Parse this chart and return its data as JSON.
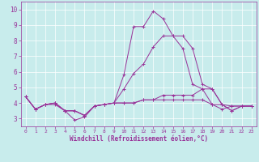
{
  "xlabel": "Windchill (Refroidissement éolien,°C)",
  "background_color": "#c8ecec",
  "line_color": "#993399",
  "xlim": [
    -0.5,
    23.5
  ],
  "ylim": [
    2.5,
    10.5
  ],
  "xticks": [
    0,
    1,
    2,
    3,
    4,
    5,
    6,
    7,
    8,
    9,
    10,
    11,
    12,
    13,
    14,
    15,
    16,
    17,
    18,
    19,
    20,
    21,
    22,
    23
  ],
  "yticks": [
    3,
    4,
    5,
    6,
    7,
    8,
    9,
    10
  ],
  "series": [
    [
      4.4,
      3.6,
      3.9,
      3.9,
      3.5,
      3.5,
      3.2,
      3.8,
      3.9,
      4.0,
      5.8,
      8.9,
      8.9,
      9.9,
      9.4,
      8.3,
      7.5,
      5.2,
      4.9,
      3.9,
      3.6,
      3.8,
      3.8,
      3.8
    ],
    [
      4.4,
      3.6,
      3.9,
      4.0,
      3.5,
      2.9,
      3.1,
      3.8,
      3.9,
      4.0,
      4.9,
      5.9,
      6.5,
      7.6,
      8.3,
      8.3,
      8.3,
      7.5,
      5.2,
      4.9,
      3.9,
      3.8,
      3.8,
      3.8
    ],
    [
      4.4,
      3.6,
      3.9,
      4.0,
      3.5,
      3.5,
      3.2,
      3.8,
      3.9,
      4.0,
      4.0,
      4.0,
      4.2,
      4.2,
      4.5,
      4.5,
      4.5,
      4.5,
      4.9,
      4.9,
      3.9,
      3.5,
      3.8,
      3.8
    ],
    [
      4.4,
      3.6,
      3.9,
      4.0,
      3.5,
      3.5,
      3.2,
      3.8,
      3.9,
      4.0,
      4.0,
      4.0,
      4.2,
      4.2,
      4.2,
      4.2,
      4.2,
      4.2,
      4.2,
      3.9,
      3.9,
      3.5,
      3.8,
      3.8
    ]
  ],
  "xtick_fontsize": 4.5,
  "ytick_fontsize": 5.5,
  "xlabel_fontsize": 5.5
}
